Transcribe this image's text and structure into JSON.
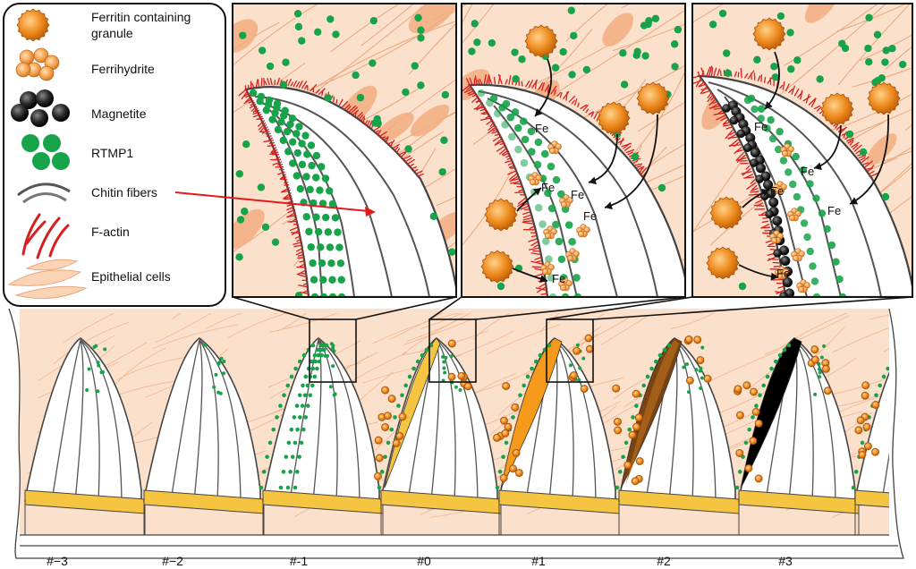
{
  "colors": {
    "tissue": "#fbe0cc",
    "tissue_stroke": "#e8a77c",
    "cell_blob": "#f2ad80",
    "rtmp1": "#17a34a",
    "ferritin": "#e07a12",
    "ferrihydrite": "#f3a04a",
    "magnetite": "#1c1c1c",
    "actin": "#d81e1e",
    "chitin": "#555555",
    "yellow": "#f5c542",
    "orange": "#f59a1a",
    "brown": "#7a4312",
    "black": "#000000",
    "arrow_red": "#e41a1a"
  },
  "legend": {
    "items": [
      {
        "name": "ferritin-granule",
        "icon": "ferritin-icon",
        "lines": [
          "Ferritin containing",
          "granule"
        ]
      },
      {
        "name": "ferrihydrite",
        "icon": "ferrihydrite-icon",
        "lines": [
          "Ferrihydrite"
        ]
      },
      {
        "name": "magnetite",
        "icon": "magnetite-icon",
        "lines": [
          "Magnetite"
        ]
      },
      {
        "name": "rtmp1",
        "icon": "rtmp1-icon",
        "lines": [
          "RTMP1"
        ]
      },
      {
        "name": "chitin-fibers",
        "icon": "chitin-icon",
        "lines": [
          "Chitin fibers"
        ]
      },
      {
        "name": "f-actin",
        "icon": "f-actin-icon",
        "lines": [
          "F-actin"
        ]
      },
      {
        "name": "epithelial-cells",
        "icon": "epithelial-icon",
        "lines": [
          "Epithelial cells"
        ]
      }
    ]
  },
  "fe_label": "Fe",
  "tooth_labels": [
    "#−3",
    "#−2",
    "#-1",
    "#0",
    "#1",
    "#2",
    "#3"
  ],
  "tooth_stages": [
    "none",
    "none",
    "rtmp1",
    "yellow",
    "orange",
    "brown",
    "black"
  ]
}
